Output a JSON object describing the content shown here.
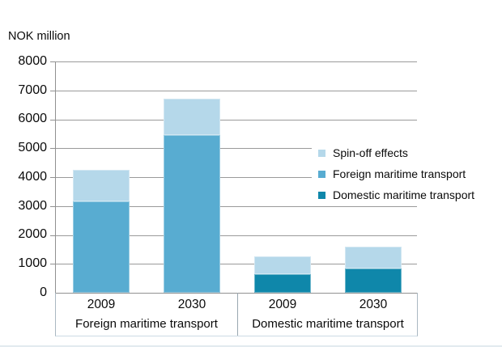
{
  "header": {
    "unit_label": "NOK million"
  },
  "chart_data": {
    "type": "bar",
    "stacked": true,
    "title": "",
    "ylabel": "NOK million",
    "xlabel": "",
    "ylim": [
      0,
      8000
    ],
    "ytick_step": 1000,
    "yticks": [
      "8000",
      "7000",
      "6000",
      "5000",
      "4000",
      "3000",
      "2000",
      "1000",
      "0"
    ],
    "grid": true,
    "legend_position": "inside-right",
    "legend": [
      {
        "label": "Spin-off effects",
        "key": "spin_off",
        "color": "#b5d8ea"
      },
      {
        "label": "Foreign maritime transport",
        "key": "foreign",
        "color": "#58acd1"
      },
      {
        "label": "Domestic maritime transport",
        "key": "domestic",
        "color": "#0f87aa"
      }
    ],
    "series_colors": {
      "spin_off": "#b5d8ea",
      "foreign": "#58acd1",
      "domestic": "#0f87aa"
    },
    "groups": [
      {
        "label": "Foreign maritime transport",
        "bars": [
          {
            "year": "2009",
            "total": 4250,
            "segments": [
              {
                "key": "foreign",
                "series": "Foreign maritime transport",
                "value": 3150
              },
              {
                "key": "spin_off",
                "series": "Spin-off effects",
                "value": 1100
              }
            ]
          },
          {
            "year": "2030",
            "total": 6700,
            "segments": [
              {
                "key": "foreign",
                "series": "Foreign maritime transport",
                "value": 5450
              },
              {
                "key": "spin_off",
                "series": "Spin-off effects",
                "value": 1250
              }
            ]
          }
        ]
      },
      {
        "label": "Domestic maritime transport",
        "bars": [
          {
            "year": "2009",
            "total": 1250,
            "segments": [
              {
                "key": "domestic",
                "series": "Domestic maritime transport",
                "value": 650
              },
              {
                "key": "spin_off",
                "series": "Spin-off effects",
                "value": 600
              }
            ]
          },
          {
            "year": "2030",
            "total": 1600,
            "segments": [
              {
                "key": "domestic",
                "series": "Domestic maritime transport",
                "value": 850
              },
              {
                "key": "spin_off",
                "series": "Spin-off effects",
                "value": 750
              }
            ]
          }
        ]
      }
    ]
  },
  "colors": {
    "grid": "#9a9a9a",
    "axis": "#919191",
    "label_box_border": "#aab8c2",
    "bottom_rule": "#e2eaef",
    "background": "#ffffff",
    "text": "#0a0a0a"
  }
}
